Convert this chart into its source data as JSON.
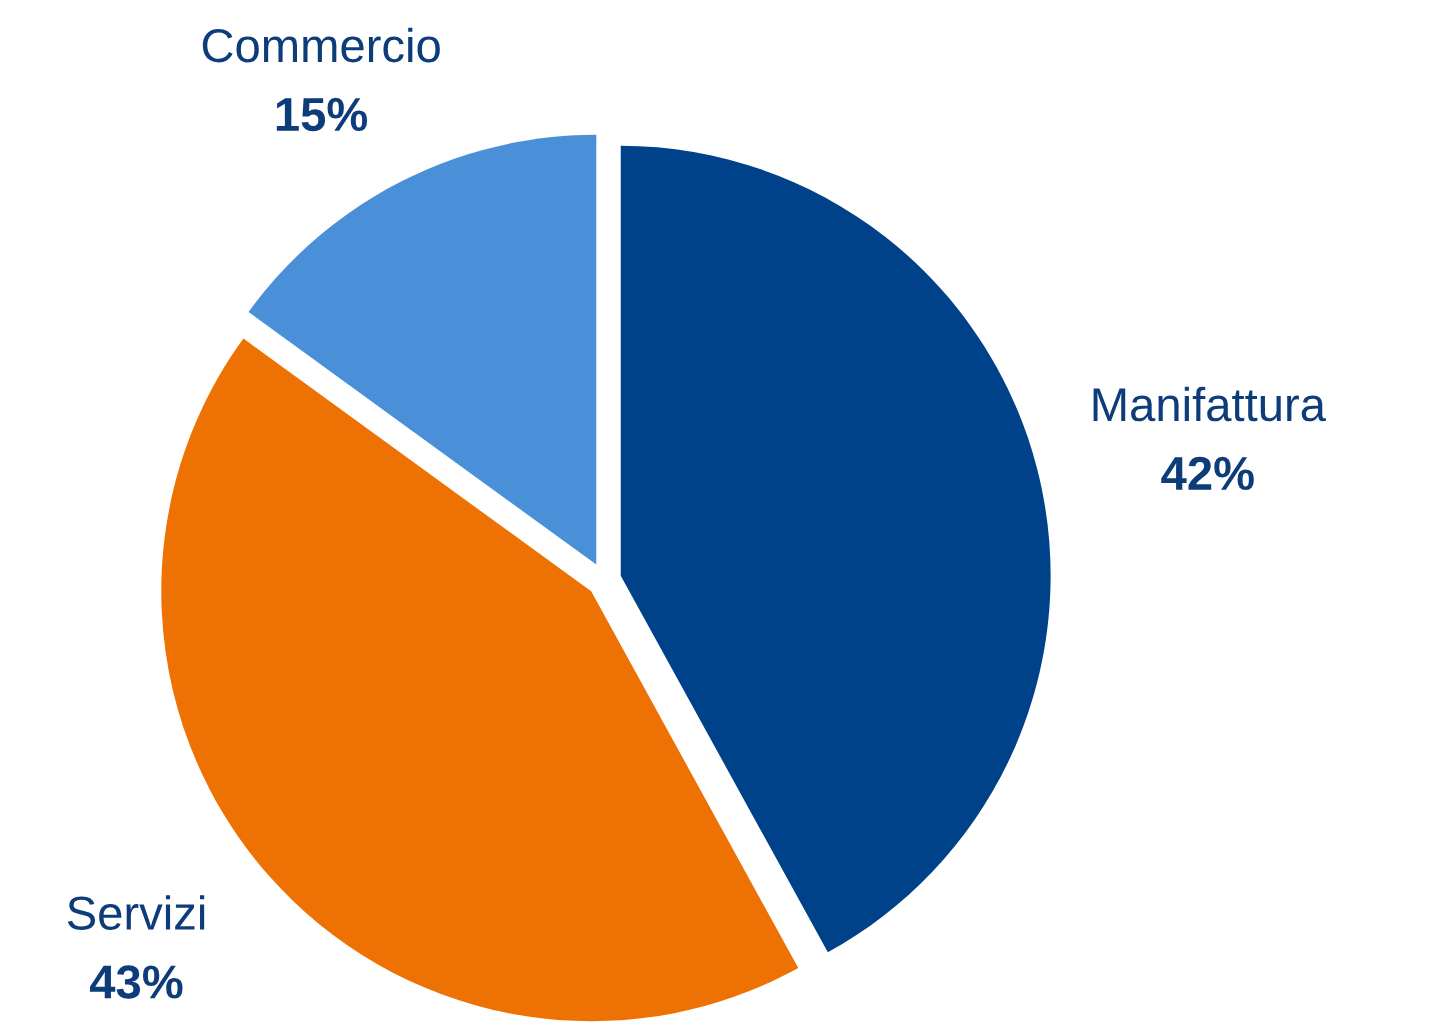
{
  "chart_data": {
    "type": "pie",
    "categories": [
      "Manifattura",
      "Servizi",
      "Commercio"
    ],
    "values": [
      42,
      43,
      15
    ],
    "colors": [
      "#00428a",
      "#ee7203",
      "#4a90d9"
    ],
    "value_labels": [
      "42%",
      "43%",
      "15%"
    ]
  }
}
